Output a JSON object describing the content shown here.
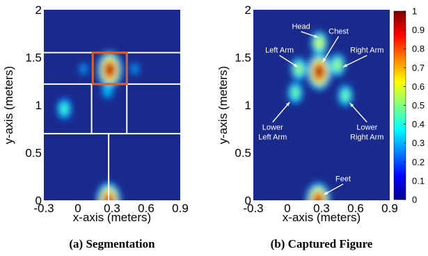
{
  "chart_data": [
    {
      "type": "heatmap",
      "caption": "(a) Segmentation",
      "xlabel": "x-axis (meters)",
      "ylabel": "y-axis (meters)",
      "xlim": [
        -0.3,
        0.9
      ],
      "ylim": [
        0,
        2
      ],
      "xticks": [
        "-0.3",
        "0",
        "0.3",
        "0.6",
        "0.9"
      ],
      "yticks": [
        "0",
        "0.5",
        "1",
        "1.5",
        "2"
      ],
      "blobs": [
        {
          "x": 0.28,
          "y": 1.37,
          "intensity": 1.0
        },
        {
          "x": 0.26,
          "y": 1.15,
          "intensity": 0.35
        },
        {
          "x": -0.12,
          "y": 0.96,
          "intensity": 0.45
        },
        {
          "x": 0.27,
          "y": 0.0,
          "intensity": 0.95
        },
        {
          "x": 0.05,
          "y": 1.38,
          "intensity": 0.3
        },
        {
          "x": 0.5,
          "y": 1.38,
          "intensity": 0.3
        }
      ],
      "segmentation_lines": {
        "horizontal": [
          {
            "y": 1.55,
            "x0": -0.3,
            "x1": 0.9
          },
          {
            "y": 1.22,
            "x0": -0.3,
            "x1": 0.9
          },
          {
            "y": 0.7,
            "x0": -0.3,
            "x1": 0.9
          }
        ],
        "vertical": [
          {
            "x": 0.12,
            "y0": 0.7,
            "y1": 1.22
          },
          {
            "x": 0.43,
            "y0": 0.7,
            "y1": 1.22
          },
          {
            "x": 0.27,
            "y0": 0.0,
            "y1": 0.7
          }
        ]
      },
      "highlight_box": {
        "x0": 0.13,
        "x1": 0.43,
        "y0": 1.22,
        "y1": 1.55,
        "color": "#d9622b"
      }
    },
    {
      "type": "heatmap",
      "caption": "(b) Captured Figure",
      "xlabel": "x-axis (meters)",
      "ylabel": "y-axis (meters)",
      "xlim": [
        -0.3,
        0.9
      ],
      "ylim": [
        0,
        2
      ],
      "xticks": [
        "-0.3",
        "0",
        "0.3",
        "0.6",
        "0.9"
      ],
      "yticks": [
        "0",
        "0.5",
        "1",
        "1.5",
        "2"
      ],
      "blobs": [
        {
          "x": 0.28,
          "y": 1.65,
          "intensity": 0.6
        },
        {
          "x": 0.28,
          "y": 1.35,
          "intensity": 1.0
        },
        {
          "x": 0.1,
          "y": 1.38,
          "intensity": 0.55
        },
        {
          "x": 0.44,
          "y": 1.42,
          "intensity": 0.55
        },
        {
          "x": 0.07,
          "y": 1.13,
          "intensity": 0.5
        },
        {
          "x": 0.51,
          "y": 1.1,
          "intensity": 0.5
        },
        {
          "x": 0.27,
          "y": 0.0,
          "intensity": 0.95
        }
      ],
      "annotations": [
        {
          "text": "Head",
          "text_x": 0.12,
          "text_y": 1.8,
          "point_x": 0.27,
          "point_y": 1.71
        },
        {
          "text": "Chest",
          "text_x": 0.45,
          "text_y": 1.75,
          "point_x": 0.31,
          "point_y": 1.45
        },
        {
          "text": "Left Arm",
          "text_x": -0.07,
          "text_y": 1.55,
          "point_x": 0.09,
          "point_y": 1.4
        },
        {
          "text": "Right Arm",
          "text_x": 0.7,
          "text_y": 1.55,
          "point_x": 0.49,
          "point_y": 1.4
        },
        {
          "text": "Lower",
          "text_x": -0.13,
          "text_y": 0.74,
          "point_x": 0.02,
          "point_y": 1.03
        },
        {
          "text": "Left Arm",
          "text_x": -0.13,
          "text_y": 0.64,
          "point_x": null,
          "point_y": null
        },
        {
          "text": "Lower",
          "text_x": 0.7,
          "text_y": 0.74,
          "point_x": 0.55,
          "point_y": 1.02
        },
        {
          "text": "Right Arm",
          "text_x": 0.7,
          "text_y": 0.64,
          "point_x": null,
          "point_y": null
        },
        {
          "text": "Feet",
          "text_x": 0.49,
          "text_y": 0.2,
          "point_x": 0.32,
          "point_y": 0.06
        }
      ]
    }
  ],
  "colorbar": {
    "range": [
      0,
      1
    ],
    "ticks": [
      "0",
      "0.1",
      "0.2",
      "0.3",
      "0.4",
      "0.5",
      "0.6",
      "0.7",
      "0.8",
      "0.9",
      "1"
    ],
    "colormap": "jet"
  }
}
